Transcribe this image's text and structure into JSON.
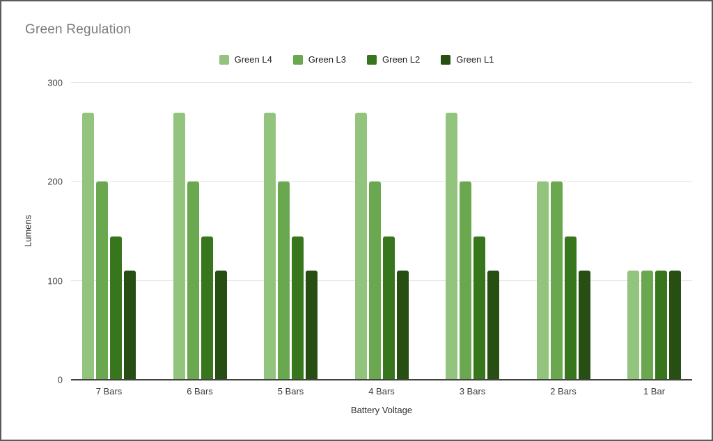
{
  "chart_data": {
    "type": "bar",
    "title": "Green Regulation",
    "xlabel": "Battery Voltage",
    "ylabel": "Lumens",
    "categories": [
      "7 Bars",
      "6 Bars",
      "5 Bars",
      "4 Bars",
      "3 Bars",
      "2 Bars",
      "1 Bar"
    ],
    "series": [
      {
        "name": "Green L4",
        "color": "#93c47d",
        "values": [
          270,
          270,
          270,
          270,
          270,
          200,
          110
        ]
      },
      {
        "name": "Green L3",
        "color": "#6aa84f",
        "values": [
          200,
          200,
          200,
          200,
          200,
          200,
          110
        ]
      },
      {
        "name": "Green L2",
        "color": "#38761d",
        "values": [
          145,
          145,
          145,
          145,
          145,
          145,
          110
        ]
      },
      {
        "name": "Green L1",
        "color": "#274e13",
        "values": [
          110,
          110,
          110,
          110,
          110,
          110,
          110
        ]
      }
    ],
    "ylim": [
      0,
      300
    ],
    "yticks": [
      0,
      100,
      200,
      300
    ],
    "legend_position": "top",
    "grid": true
  },
  "colors": {
    "title_text": "#7a7a7a",
    "axis_text": "#424242",
    "gridline": "#e2e2e2",
    "baseline": "#424242",
    "border": "#5b5b5d",
    "background": "#ffffff"
  }
}
